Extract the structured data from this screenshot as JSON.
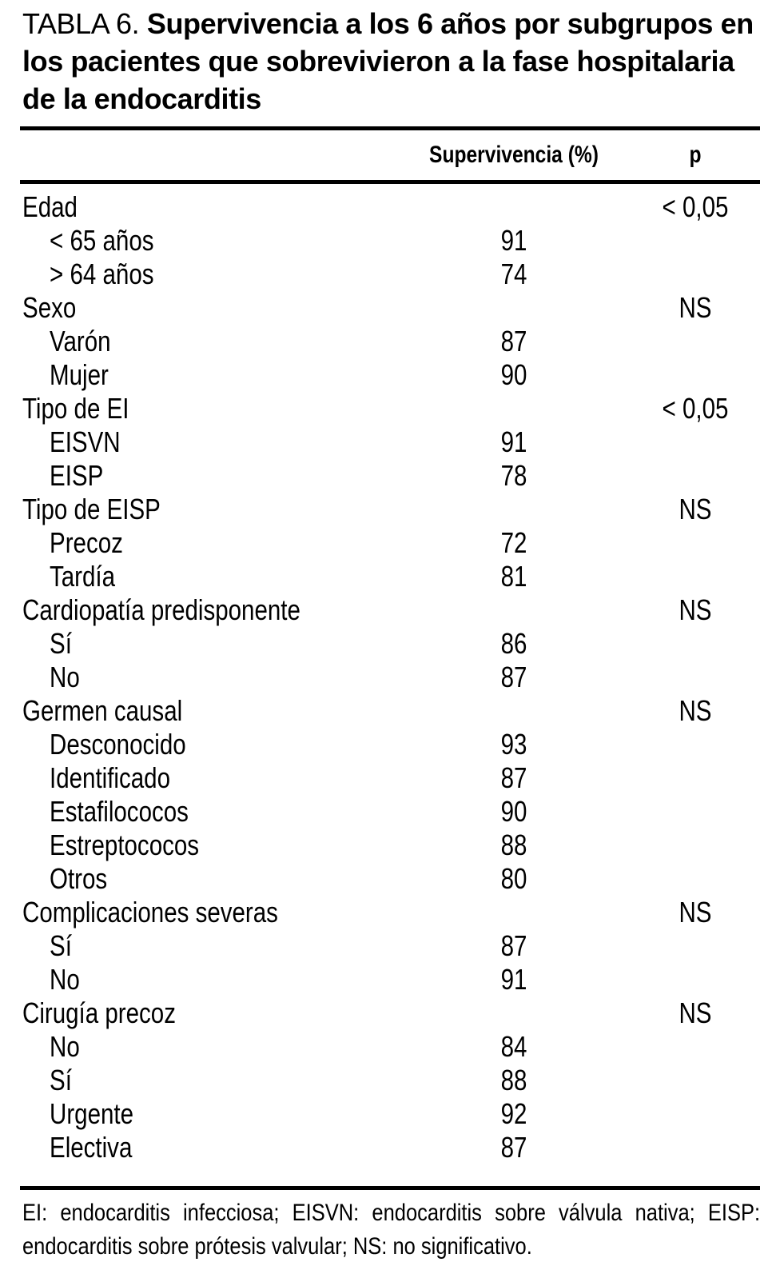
{
  "title": {
    "label": "TABLA 6.",
    "caption": "Supervivencia a los 6 años por subgrupos en los pacientes que sobrevivieron a la fase hospitalaria de la endocarditis"
  },
  "columns": {
    "survival": "Supervivencia (%)",
    "p": "p"
  },
  "rows": [
    {
      "label": "Edad",
      "indent": false,
      "survival": "",
      "p": "< 0,05"
    },
    {
      "label": "< 65 años",
      "indent": true,
      "survival": "91",
      "p": ""
    },
    {
      "label": "> 64 años",
      "indent": true,
      "survival": "74",
      "p": ""
    },
    {
      "label": "Sexo",
      "indent": false,
      "survival": "",
      "p": "NS"
    },
    {
      "label": "Varón",
      "indent": true,
      "survival": "87",
      "p": ""
    },
    {
      "label": "Mujer",
      "indent": true,
      "survival": "90",
      "p": ""
    },
    {
      "label": "Tipo de EI",
      "indent": false,
      "survival": "",
      "p": "< 0,05"
    },
    {
      "label": "EISVN",
      "indent": true,
      "survival": "91",
      "p": ""
    },
    {
      "label": "EISP",
      "indent": true,
      "survival": "78",
      "p": ""
    },
    {
      "label": "Tipo de EISP",
      "indent": false,
      "survival": "",
      "p": "NS"
    },
    {
      "label": "Precoz",
      "indent": true,
      "survival": "72",
      "p": ""
    },
    {
      "label": "Tardía",
      "indent": true,
      "survival": "81",
      "p": ""
    },
    {
      "label": "Cardiopatía predisponente",
      "indent": false,
      "survival": "",
      "p": "NS"
    },
    {
      "label": "Sí",
      "indent": true,
      "survival": "86",
      "p": ""
    },
    {
      "label": "No",
      "indent": true,
      "survival": "87",
      "p": ""
    },
    {
      "label": "Germen causal",
      "indent": false,
      "survival": "",
      "p": "NS"
    },
    {
      "label": "Desconocido",
      "indent": true,
      "survival": "93",
      "p": ""
    },
    {
      "label": "Identificado",
      "indent": true,
      "survival": "87",
      "p": ""
    },
    {
      "label": "Estafilococos",
      "indent": true,
      "survival": "90",
      "p": ""
    },
    {
      "label": "Estreptococos",
      "indent": true,
      "survival": "88",
      "p": ""
    },
    {
      "label": "Otros",
      "indent": true,
      "survival": "80",
      "p": ""
    },
    {
      "label": "Complicaciones severas",
      "indent": false,
      "survival": "",
      "p": "NS"
    },
    {
      "label": "Sí",
      "indent": true,
      "survival": "87",
      "p": ""
    },
    {
      "label": "No",
      "indent": true,
      "survival": "91",
      "p": ""
    },
    {
      "label": "Cirugía precoz",
      "indent": false,
      "survival": "",
      "p": "NS"
    },
    {
      "label": "No",
      "indent": true,
      "survival": "84",
      "p": ""
    },
    {
      "label": "Sí",
      "indent": true,
      "survival": "88",
      "p": ""
    },
    {
      "label": "Urgente",
      "indent": true,
      "survival": "92",
      "p": ""
    },
    {
      "label": "Electiva",
      "indent": true,
      "survival": "87",
      "p": ""
    }
  ],
  "footnote": {
    "line1": "EI: endocarditis infecciosa; EISVN: endocarditis sobre válvula nativa; EISP:",
    "line2": "endocarditis sobre prótesis valvular; NS: no significativo."
  }
}
